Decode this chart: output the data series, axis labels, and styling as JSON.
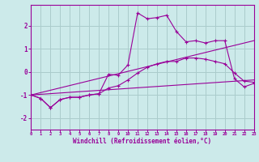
{
  "xlabel": "Windchill (Refroidissement éolien,°C)",
  "background_color": "#cceaea",
  "grid_color": "#aacccc",
  "line_color": "#990099",
  "xlim": [
    0,
    23
  ],
  "ylim": [
    -2.5,
    2.9
  ],
  "yticks": [
    -2,
    -1,
    0,
    1,
    2
  ],
  "xticks": [
    0,
    1,
    2,
    3,
    4,
    5,
    6,
    7,
    8,
    9,
    10,
    11,
    12,
    13,
    14,
    15,
    16,
    17,
    18,
    19,
    20,
    21,
    22,
    23
  ],
  "series": [
    {
      "x": [
        0,
        1,
        2,
        3,
        4,
        5,
        6,
        7,
        8,
        9,
        10,
        11,
        12,
        13,
        14,
        15,
        16,
        17,
        18,
        19,
        20,
        21,
        22,
        23
      ],
      "y": [
        -1.0,
        -1.15,
        -1.55,
        -1.2,
        -1.1,
        -1.1,
        -1.0,
        -0.95,
        -0.1,
        -0.15,
        0.3,
        2.55,
        2.3,
        2.35,
        2.45,
        1.75,
        1.3,
        1.35,
        1.25,
        1.35,
        1.35,
        -0.3,
        -0.65,
        -0.5
      ],
      "marker": true
    },
    {
      "x": [
        0,
        1,
        2,
        3,
        4,
        5,
        6,
        7,
        8,
        9,
        10,
        11,
        12,
        13,
        14,
        15,
        16,
        17,
        18,
        19,
        20,
        21,
        22,
        23
      ],
      "y": [
        -1.0,
        -1.15,
        -1.55,
        -1.2,
        -1.1,
        -1.1,
        -1.0,
        -0.95,
        -0.7,
        -0.6,
        -0.35,
        -0.05,
        0.2,
        0.35,
        0.45,
        0.45,
        0.6,
        0.6,
        0.55,
        0.45,
        0.35,
        -0.05,
        -0.4,
        -0.45
      ],
      "marker": true
    },
    {
      "x": [
        0,
        23
      ],
      "y": [
        -1.0,
        1.35
      ],
      "marker": false
    },
    {
      "x": [
        0,
        23
      ],
      "y": [
        -1.0,
        -0.35
      ],
      "marker": false
    }
  ]
}
